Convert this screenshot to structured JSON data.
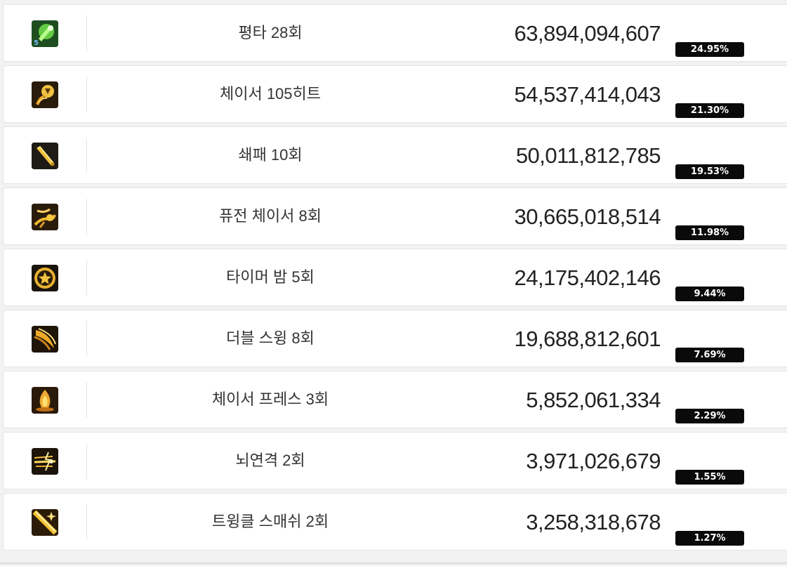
{
  "skills": [
    {
      "name": "평타 28회",
      "damage": "63,894,094,607",
      "percent": "24.95%",
      "icon": "green-strike-icon"
    },
    {
      "name": "체이서 105히트",
      "damage": "54,537,414,043",
      "percent": "21.30%",
      "icon": "chaser-orb-icon"
    },
    {
      "name": "쇄패 10회",
      "damage": "50,011,812,785",
      "percent": "19.53%",
      "icon": "bat-icon"
    },
    {
      "name": "퓨전 체이서 8회",
      "damage": "30,665,018,514",
      "percent": "11.98%",
      "icon": "fusion-chaser-icon"
    },
    {
      "name": "타이머 밤 5회",
      "damage": "24,175,402,146",
      "percent": "9.44%",
      "icon": "timer-bomb-icon"
    },
    {
      "name": "더블 스윙 8회",
      "damage": "19,688,812,601",
      "percent": "7.69%",
      "icon": "double-swing-icon"
    },
    {
      "name": "체이서 프레스 3회",
      "damage": "5,852,061,334",
      "percent": "2.29%",
      "icon": "chaser-press-icon"
    },
    {
      "name": "뇌연격 2회",
      "damage": "3,971,026,679",
      "percent": "1.55%",
      "icon": "thunder-strike-icon"
    },
    {
      "name": "트윙클 스매쉬 2회",
      "damage": "3,258,318,678",
      "percent": "1.27%",
      "icon": "twinkle-smash-icon"
    }
  ],
  "colors": {
    "badge_bg": "#0a0a0a",
    "badge_text": "#ffffff",
    "icon_gold": "#e8b530",
    "icon_green": "#5ccf3a"
  }
}
